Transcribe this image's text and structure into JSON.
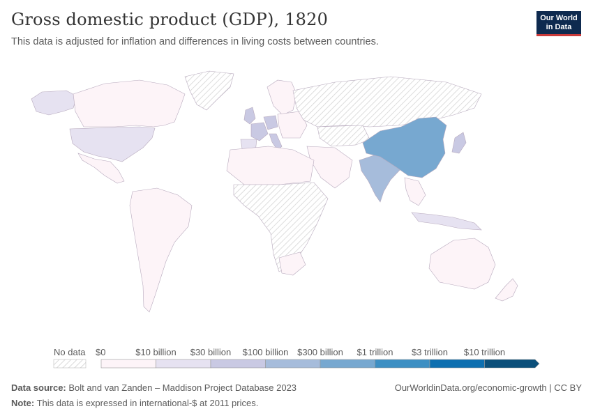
{
  "title": "Gross domestic product (GDP), 1820",
  "subtitle": "This data is adjusted for inflation and differences in living costs between countries.",
  "logo": {
    "line1": "Our World",
    "line2": "in Data"
  },
  "legend": {
    "no_data_label": "No data",
    "bins": [
      {
        "label": "$0",
        "color": "#fdf4f8"
      },
      {
        "label": "$10 billion",
        "color": "#e6e2f1"
      },
      {
        "label": "$30 billion",
        "color": "#c9c9e3"
      },
      {
        "label": "$100 billion",
        "color": "#a6bcdb"
      },
      {
        "label": "$300 billion",
        "color": "#77a8d0"
      },
      {
        "label": "$1 trillion",
        "color": "#3d8fc3"
      },
      {
        "label": "$3 trillion",
        "color": "#0d6fb0"
      },
      {
        "label": "$10 trillion",
        "color": "#0b4f7a"
      }
    ]
  },
  "map_data": {
    "metric": "GDP (international-$ at 2011 prices)",
    "year": "1820",
    "highlighted_regions": [
      {
        "region": "China",
        "bin": "$1 trillion"
      },
      {
        "region": "India",
        "bin": "$300 billion"
      },
      {
        "region": "Japan",
        "bin": "$30 billion"
      },
      {
        "region": "France",
        "bin": "$30 billion"
      },
      {
        "region": "United Kingdom",
        "bin": "$30 billion"
      },
      {
        "region": "Germany",
        "bin": "$30 billion"
      },
      {
        "region": "Italy",
        "bin": "$30 billion"
      },
      {
        "region": "Russia",
        "bin": "No data"
      },
      {
        "region": "United States",
        "bin": "$10 billion"
      },
      {
        "region": "Spain",
        "bin": "$10 billion"
      },
      {
        "region": "Indonesia",
        "bin": "$10 billion"
      },
      {
        "region": "Greenland",
        "bin": "No data"
      }
    ]
  },
  "footer": {
    "source_label": "Data source:",
    "source_text": "Bolt and van Zanden – Maddison Project Database 2023",
    "note_label": "Note:",
    "note_text": "This data is expressed in international-$ at 2011 prices.",
    "url_text": "OurWorldinData.org/economic-growth | CC BY"
  }
}
